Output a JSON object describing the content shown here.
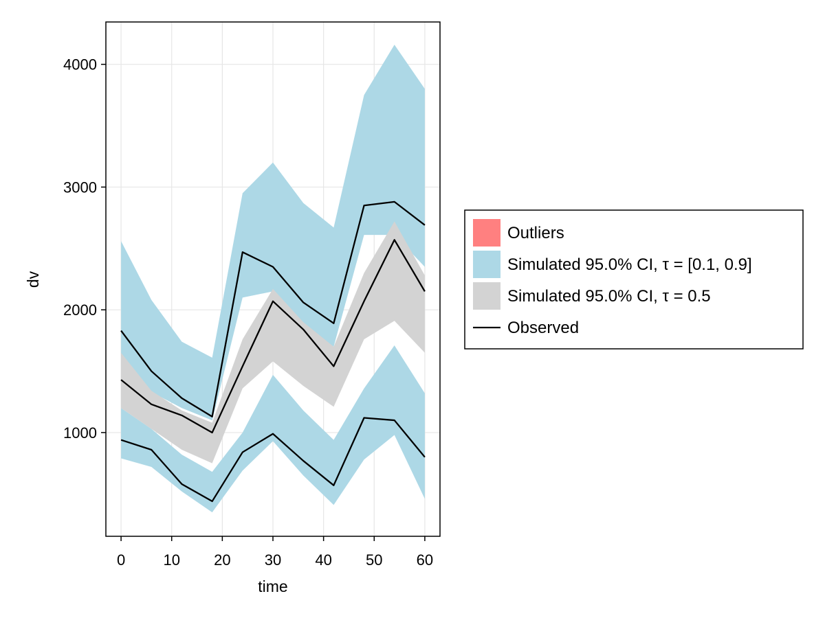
{
  "chart_data": {
    "type": "area",
    "xlabel": "time",
    "ylabel": "dv",
    "xlim": [
      -3,
      63
    ],
    "ylim": [
      155,
      4345
    ],
    "xticks": [
      0,
      10,
      20,
      30,
      40,
      50,
      60
    ],
    "yticks": [
      1000,
      2000,
      3000,
      4000
    ],
    "grid": true,
    "legend_position": "right",
    "x": [
      0,
      6,
      12,
      18,
      24,
      30,
      36,
      42,
      48,
      54,
      60
    ],
    "bands": [
      {
        "name": "Simulated 95.0% CI, τ = [0.1, 0.9]",
        "group": "upper",
        "color": "#add8e6",
        "lower": [
          1620,
          1330,
          1200,
          1100,
          2100,
          2150,
          1880,
          1700,
          2610,
          2610,
          2350
        ],
        "upper": [
          2560,
          2080,
          1740,
          1610,
          2950,
          3200,
          2870,
          2670,
          3750,
          4160,
          3800
        ]
      },
      {
        "name": "Simulated 95.0% CI, τ = [0.1, 0.9]",
        "group": "lower",
        "color": "#add8e6",
        "lower": [
          790,
          720,
          520,
          350,
          690,
          930,
          650,
          410,
          780,
          980,
          460
        ],
        "upper": [
          1200,
          1030,
          820,
          680,
          1000,
          1470,
          1180,
          940,
          1360,
          1710,
          1320
        ]
      },
      {
        "name": "Simulated 95.0% CI, τ = 0.5",
        "group": "median",
        "color": "#d3d3d3",
        "lower": [
          1200,
          1030,
          860,
          750,
          1360,
          1580,
          1380,
          1210,
          1760,
          1910,
          1650
        ],
        "upper": [
          1650,
          1340,
          1180,
          1080,
          1760,
          2170,
          1900,
          1700,
          2300,
          2720,
          2280
        ]
      }
    ],
    "series": [
      {
        "name": "Observed",
        "quantile": "upper",
        "values": [
          1830,
          1500,
          1280,
          1130,
          2470,
          2350,
          2060,
          1890,
          2850,
          2880,
          2690
        ]
      },
      {
        "name": "Observed",
        "quantile": "median",
        "values": [
          1430,
          1230,
          1140,
          1000,
          1540,
          2070,
          1840,
          1540,
          2070,
          2570,
          2150
        ]
      },
      {
        "name": "Observed",
        "quantile": "lower",
        "values": [
          940,
          860,
          580,
          440,
          840,
          990,
          770,
          570,
          1120,
          1100,
          800
        ]
      }
    ],
    "legend": [
      {
        "label": "Outliers",
        "kind": "patch",
        "color": "#ff8080"
      },
      {
        "label": "Simulated 95.0% CI, τ = [0.1, 0.9]",
        "kind": "patch",
        "color": "#add8e6"
      },
      {
        "label": "Simulated 95.0% CI, τ = 0.5",
        "kind": "patch",
        "color": "#d3d3d3"
      },
      {
        "label": "Observed",
        "kind": "line",
        "color": "#000000"
      }
    ]
  }
}
